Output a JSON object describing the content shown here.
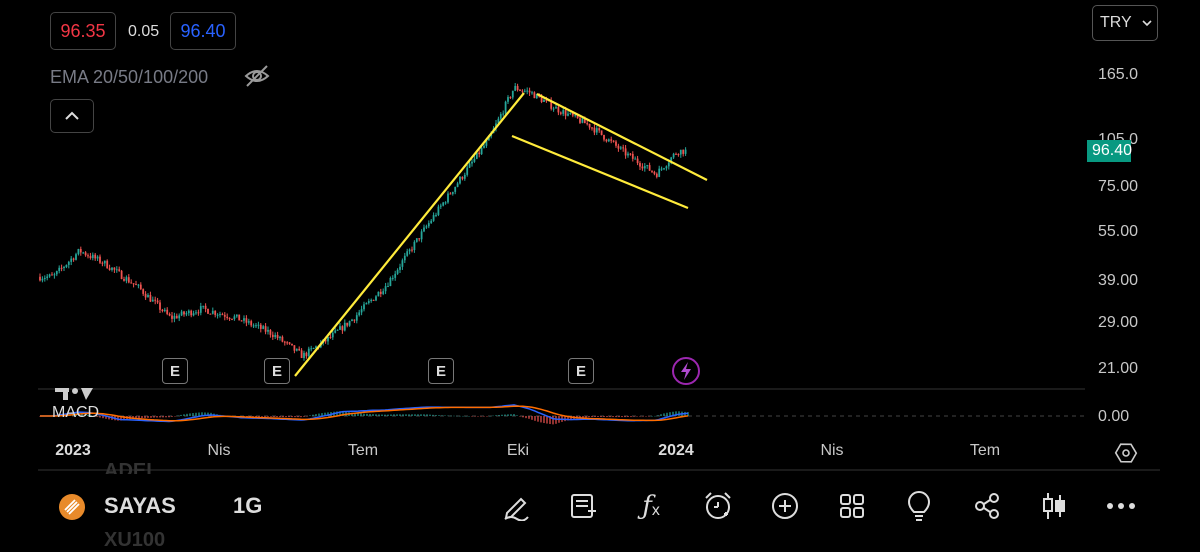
{
  "quote": {
    "bid": "96.35",
    "spread": "0.05",
    "ask": "96.40"
  },
  "indicator": {
    "label": "EMA 20/50/100/200"
  },
  "currency": {
    "label": "TRY"
  },
  "price_axis": {
    "ticks": [
      "165.0",
      "105.0",
      "75.00",
      "55.00",
      "39.00",
      "29.00",
      "21.00"
    ],
    "current": "96.40"
  },
  "macd": {
    "label": "MACD",
    "zero": "0.00"
  },
  "time_axis": {
    "labels": [
      "2023",
      "Nis",
      "Tem",
      "Eki",
      "2024",
      "Nis",
      "Tem"
    ]
  },
  "events": {
    "earnings_label": "E"
  },
  "symbol_bar": {
    "symbol": "SAYAS",
    "symbol_above": "ADEL",
    "symbol_below": "XU100",
    "interval": "1G"
  },
  "colors": {
    "up": "#26a69a",
    "down": "#ef5350",
    "trendline": "#ffeb3b",
    "macd": "#2962ff",
    "signal": "#ff6d00",
    "current_price_bg": "#089981"
  },
  "toolbar_icons": [
    "draw-icon",
    "add-note-icon",
    "indicators-icon",
    "alert-icon",
    "add-icon",
    "layouts-icon",
    "ideas-icon",
    "share-icon",
    "chart-type-icon",
    "more-icon"
  ],
  "chart_data": {
    "type": "candlestick",
    "y_scale": "log",
    "y_range": [
      21,
      165
    ],
    "x_range": [
      "2022-12",
      "2024-07"
    ],
    "series": [
      {
        "type": "close_approx",
        "x": [
          "2022-12-20",
          "2023-01-05",
          "2023-01-20",
          "2023-02-10",
          "2023-03-01",
          "2023-03-20",
          "2023-04-10",
          "2023-05-01",
          "2023-05-20",
          "2023-06-05",
          "2023-06-20",
          "2023-07-10",
          "2023-08-01",
          "2023-08-20",
          "2023-09-10",
          "2023-09-25",
          "2023-10-05",
          "2023-10-20",
          "2023-11-10",
          "2023-12-01",
          "2023-12-20",
          "2024-01-02"
        ],
        "y": [
          40,
          48,
          44,
          37,
          30,
          32,
          30,
          27,
          23,
          26,
          30,
          38,
          55,
          75,
          105,
          150,
          145,
          130,
          115,
          95,
          82,
          96.4
        ]
      }
    ],
    "annotations": [
      "rising trendline",
      "falling channel upper",
      "falling channel lower"
    ]
  }
}
